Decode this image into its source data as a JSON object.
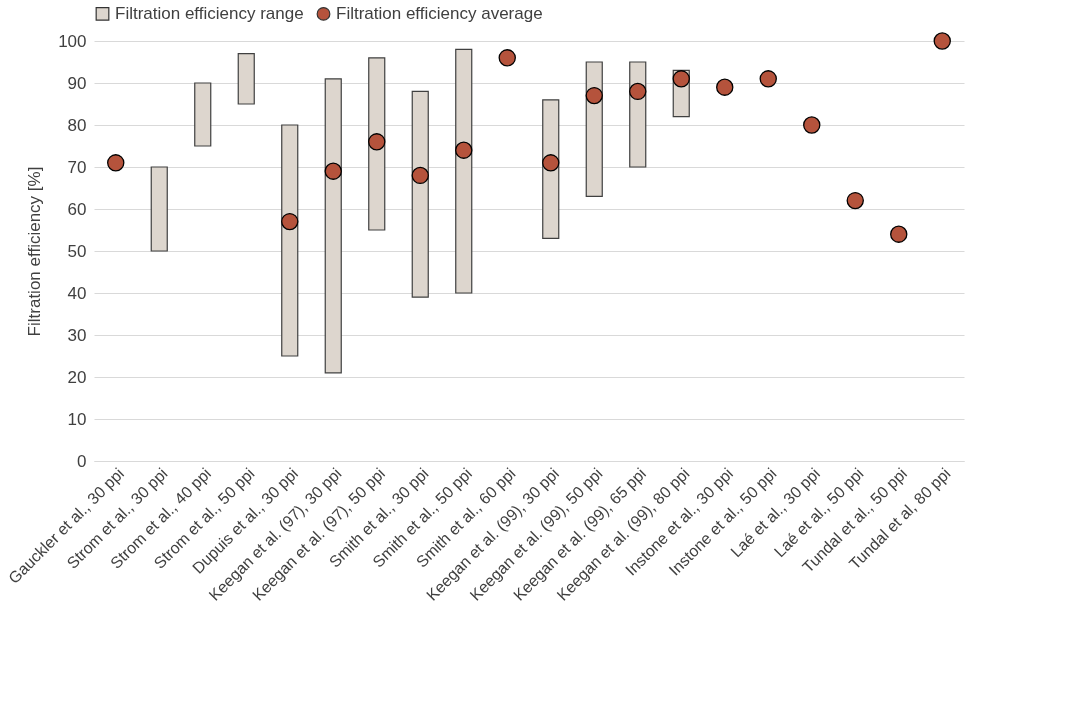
{
  "chart_data": {
    "type": "bar",
    "ylabel": "Filtration efficiency [%]",
    "categories": [
      "Gauckler et al., 30 ppi",
      "Strom et al., 30 ppi",
      "Strom et al., 40 ppi",
      "Strom et al., 50 ppi",
      "Dupuis et al., 30 ppi",
      "Keegan et al. (97), 30 ppi",
      "Keegan et al. (97), 50 ppi",
      "Smith et al., 30 ppi",
      "Smith et al., 50 ppi",
      "Smith et al., 60 ppi",
      "Keegan et al. (99), 30 ppi",
      "Keegan et al. (99), 50 ppi",
      "Keegan et al. (99), 65 ppi",
      "Keegan et al. (99), 80 ppi",
      "Instone et al., 30 ppi",
      "Instone et al., 50 ppi",
      "Laé et al., 30 ppi",
      "Laé et al., 50 ppi",
      "Tundal et al., 50 ppi",
      "Tundal et al, 80 ppi"
    ],
    "series": [
      {
        "name": "Filtration efficiency range",
        "type": "bar",
        "color": "#ddd6ce",
        "base": [
          null,
          50,
          75,
          85,
          25,
          21,
          55,
          39,
          40,
          null,
          53,
          63,
          70,
          82,
          null,
          null,
          null,
          null,
          null,
          null
        ],
        "values": [
          null,
          20,
          15,
          12,
          55,
          70,
          41,
          49,
          58,
          null,
          33,
          32,
          25,
          11,
          null,
          null,
          null,
          null,
          null,
          null
        ]
      },
      {
        "name": "Filtration efficiency average",
        "type": "scatter",
        "color": "#b5533c",
        "values": [
          71,
          null,
          null,
          null,
          57,
          69,
          76,
          68,
          74,
          96,
          71,
          87,
          88,
          91,
          89,
          91,
          80,
          62,
          54,
          100
        ]
      }
    ],
    "ylim": [
      0,
      100
    ],
    "yticks": [
      0,
      10,
      20,
      30,
      40,
      50,
      60,
      70,
      80,
      90,
      100
    ],
    "grid": true,
    "legend": "top",
    "marker": "circle"
  }
}
